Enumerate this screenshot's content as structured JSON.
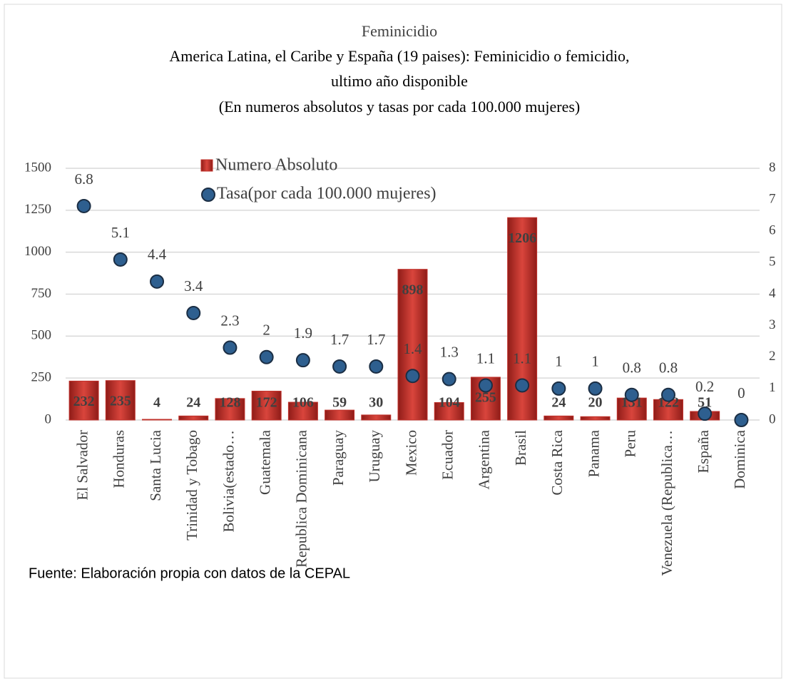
{
  "chart_data": {
    "type": "bar_dot",
    "title": "Feminicidio",
    "subtitle": [
      "America Latina, el Caribe y España (19 paises): Feminicidio o femicidio,",
      "ultimo año disponible",
      "(En numeros absolutos y tasas por cada 100.000 mujeres)"
    ],
    "source": "Fuente: Elaboración propia con datos de la CEPAL",
    "categories": [
      "El Salvador",
      "Honduras",
      "Santa Lucia",
      "Trinidad y Tobago",
      "Bolivia(estado…",
      "Guatemala",
      "Republica Dominicana",
      "Paraguay",
      "Uruguay",
      "Mexico",
      "Ecuador",
      "Argentina",
      "Brasil",
      "Costa Rica",
      "Panama",
      "Peru",
      "Venezuela (Republica…",
      "España",
      "Dominica"
    ],
    "series": [
      {
        "name": "Numero Absoluto",
        "color": "#c0302a",
        "values": [
          232,
          235,
          4,
          24,
          128,
          172,
          106,
          59,
          30,
          898,
          104,
          255,
          1206,
          24,
          20,
          131,
          122,
          51,
          null
        ]
      },
      {
        "name": "Tasa(por cada 100.000 mujeres)",
        "color": "#2e5f8f",
        "axis": "y2",
        "values": [
          6.8,
          5.1,
          4.4,
          3.4,
          2.3,
          2,
          1.9,
          1.7,
          1.7,
          1.4,
          1.3,
          1.1,
          1.1,
          1,
          1,
          0.8,
          0.8,
          0.2,
          0
        ]
      }
    ],
    "ylim": [
      0,
      1500
    ],
    "yticks": [
      0,
      250,
      500,
      750,
      1000,
      1250,
      1500
    ],
    "y2lim": [
      0,
      8
    ],
    "y2ticks": [
      0,
      1,
      2,
      3,
      4,
      5,
      6,
      7,
      8
    ],
    "grid": true
  }
}
